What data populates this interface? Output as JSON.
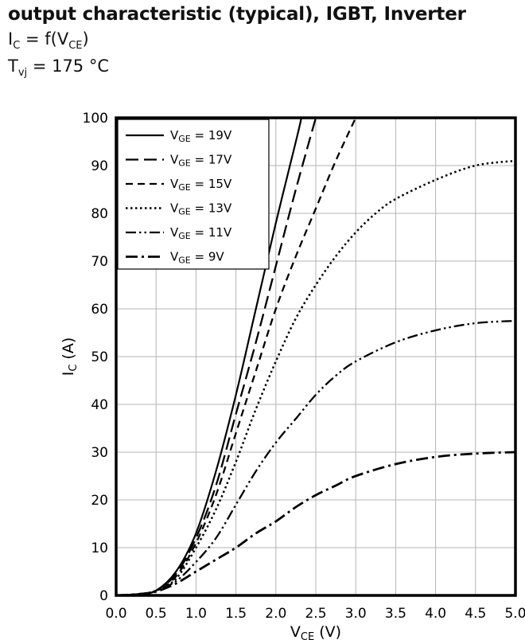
{
  "header": {
    "title": "output characteristic (typical), IGBT, Inverter",
    "fn": {
      "p1": "I",
      "s1": "C",
      "p2": " = f(V",
      "s2": "CE",
      "p3": ")"
    },
    "temp": {
      "p1": "T",
      "s1": "vj",
      "p2": " = 175 °C"
    }
  },
  "chart_data": {
    "type": "line",
    "title": "output characteristic (typical), IGBT, Inverter",
    "subtitle": "IC = f(VCE), Tvj = 175 °C",
    "xlabel": "VCE (V)",
    "ylabel": "IC (A)",
    "xlabel_parts": {
      "p1": "V",
      "s1": "CE",
      "p2": " (V)"
    },
    "ylabel_parts": {
      "p1": "I",
      "s1": "C",
      "p2": " (A)"
    },
    "xlim": [
      0,
      5
    ],
    "ylim": [
      0,
      100
    ],
    "x_ticks": [
      0,
      0.5,
      1,
      1.5,
      2,
      2.5,
      3,
      3.5,
      4,
      4.5,
      5
    ],
    "x_tick_labels": [
      "0.0",
      "0.5",
      "1.0",
      "1.5",
      "2.0",
      "2.5",
      "3.0",
      "3.5",
      "4.0",
      "4.5",
      "5.0"
    ],
    "y_ticks": [
      0,
      10,
      20,
      30,
      40,
      50,
      60,
      70,
      80,
      90,
      100
    ],
    "y_tick_labels": [
      "0",
      "10",
      "20",
      "30",
      "40",
      "50",
      "60",
      "70",
      "80",
      "90",
      "100"
    ],
    "grid": true,
    "legend_position": "top-left",
    "line_color": "#000000",
    "grid_color": "#b4b4b4",
    "series": [
      {
        "id": "vge-19",
        "name": "V_GE = 19V",
        "base": "V",
        "sub": "GE",
        "rest": " = 19V",
        "line_style": "solid",
        "points": [
          [
            0,
            0
          ],
          [
            0.3,
            0.3
          ],
          [
            0.5,
            1
          ],
          [
            0.75,
            5
          ],
          [
            1,
            13
          ],
          [
            1.25,
            26
          ],
          [
            1.5,
            42
          ],
          [
            1.75,
            60
          ],
          [
            2,
            78
          ],
          [
            2.25,
            95
          ],
          [
            2.32,
            100
          ]
        ]
      },
      {
        "id": "vge-17",
        "name": "V_GE = 17V",
        "base": "V",
        "sub": "GE",
        "rest": " = 17V",
        "line_style": "long-dash",
        "points": [
          [
            0,
            0
          ],
          [
            0.3,
            0.3
          ],
          [
            0.5,
            1
          ],
          [
            0.75,
            4.5
          ],
          [
            1,
            12
          ],
          [
            1.25,
            23
          ],
          [
            1.5,
            38
          ],
          [
            1.75,
            53
          ],
          [
            2,
            69
          ],
          [
            2.25,
            85
          ],
          [
            2.5,
            100
          ]
        ]
      },
      {
        "id": "vge-15",
        "name": "V_GE = 15V",
        "base": "V",
        "sub": "GE",
        "rest": " = 15V",
        "line_style": "dash",
        "points": [
          [
            0,
            0
          ],
          [
            0.3,
            0.3
          ],
          [
            0.5,
            1
          ],
          [
            0.75,
            4
          ],
          [
            1,
            11
          ],
          [
            1.25,
            21
          ],
          [
            1.5,
            34
          ],
          [
            1.75,
            47
          ],
          [
            2,
            60
          ],
          [
            2.25,
            71
          ],
          [
            2.5,
            81
          ],
          [
            2.75,
            91
          ],
          [
            3,
            100
          ]
        ]
      },
      {
        "id": "vge-13",
        "name": "V_GE = 13V",
        "base": "V",
        "sub": "GE",
        "rest": " = 13V",
        "line_style": "dot",
        "points": [
          [
            0,
            0
          ],
          [
            0.3,
            0.3
          ],
          [
            0.5,
            1
          ],
          [
            0.75,
            3.5
          ],
          [
            1,
            10
          ],
          [
            1.25,
            18
          ],
          [
            1.5,
            28
          ],
          [
            1.75,
            39
          ],
          [
            2,
            49
          ],
          [
            2.25,
            58
          ],
          [
            2.5,
            65
          ],
          [
            2.75,
            71
          ],
          [
            3,
            76
          ],
          [
            3.25,
            80
          ],
          [
            3.5,
            83
          ],
          [
            4,
            87
          ],
          [
            4.5,
            90
          ],
          [
            5,
            91
          ]
        ]
      },
      {
        "id": "vge-11",
        "name": "V_GE = 11V",
        "base": "V",
        "sub": "GE",
        "rest": " = 11V",
        "line_style": "dash-dot-dot",
        "points": [
          [
            0,
            0
          ],
          [
            0.3,
            0.3
          ],
          [
            0.5,
            1
          ],
          [
            0.75,
            3
          ],
          [
            1,
            7
          ],
          [
            1.25,
            12
          ],
          [
            1.5,
            19
          ],
          [
            1.75,
            26
          ],
          [
            2,
            32
          ],
          [
            2.25,
            37
          ],
          [
            2.5,
            42
          ],
          [
            2.75,
            46
          ],
          [
            3,
            49
          ],
          [
            3.5,
            53
          ],
          [
            4,
            55.5
          ],
          [
            4.5,
            57
          ],
          [
            5,
            57.5
          ]
        ]
      },
      {
        "id": "vge-9",
        "name": "V_GE = 9V",
        "base": "V",
        "sub": "GE",
        "rest": " = 9V",
        "line_style": "dash-dot",
        "points": [
          [
            0,
            0
          ],
          [
            0.3,
            0.3
          ],
          [
            0.5,
            0.8
          ],
          [
            0.75,
            2.5
          ],
          [
            1,
            5
          ],
          [
            1.25,
            7.5
          ],
          [
            1.5,
            10
          ],
          [
            1.75,
            13
          ],
          [
            2,
            15.5
          ],
          [
            2.25,
            18.5
          ],
          [
            2.5,
            21
          ],
          [
            2.75,
            23
          ],
          [
            3,
            25
          ],
          [
            3.5,
            27.5
          ],
          [
            4,
            29
          ],
          [
            4.5,
            29.7
          ],
          [
            5,
            30
          ]
        ]
      }
    ]
  }
}
